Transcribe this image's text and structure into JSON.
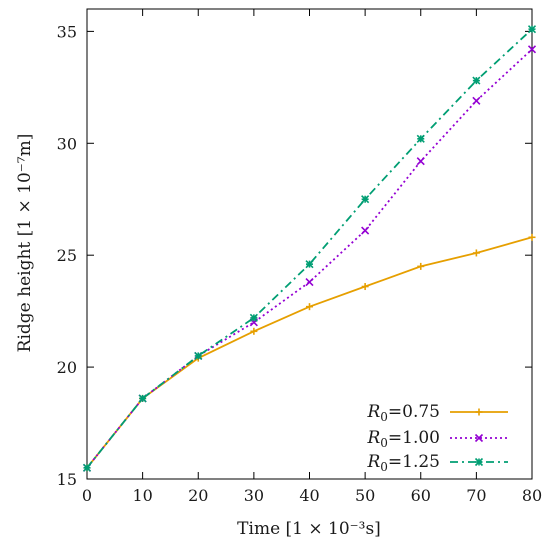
{
  "chart_data": {
    "type": "line",
    "xlabel": "Time [1 × 10⁻³s]",
    "ylabel": "Ridge height [1 × 10⁻⁷m]",
    "xlim": [
      0,
      80
    ],
    "ylim": [
      15,
      36
    ],
    "x_ticks": [
      0,
      10,
      20,
      30,
      40,
      50,
      60,
      70,
      80
    ],
    "y_ticks": [
      15,
      20,
      25,
      30,
      35
    ],
    "grid": false,
    "legend_position": "bottom-right",
    "x": [
      0,
      10,
      20,
      30,
      40,
      50,
      60,
      70,
      80
    ],
    "series": [
      {
        "name_symbol": "R",
        "name_subscript": "0",
        "name_value": "=0.75",
        "color": "#e69f00",
        "line_style": "solid",
        "marker": "plus",
        "values": [
          15.5,
          18.6,
          20.4,
          21.6,
          22.7,
          23.6,
          24.5,
          25.1,
          25.8
        ]
      },
      {
        "name_symbol": "R",
        "name_subscript": "0",
        "name_value": "=1.00",
        "color": "#9400d3",
        "line_style": "dotted",
        "marker": "cross",
        "values": [
          15.5,
          18.6,
          20.5,
          22.0,
          23.8,
          26.1,
          29.2,
          31.9,
          34.2
        ]
      },
      {
        "name_symbol": "R",
        "name_subscript": "0",
        "name_value": "=1.25",
        "color": "#009e73",
        "line_style": "dash-dot",
        "marker": "star",
        "values": [
          15.5,
          18.6,
          20.5,
          22.2,
          24.6,
          27.5,
          30.2,
          32.8,
          35.1
        ]
      }
    ]
  }
}
